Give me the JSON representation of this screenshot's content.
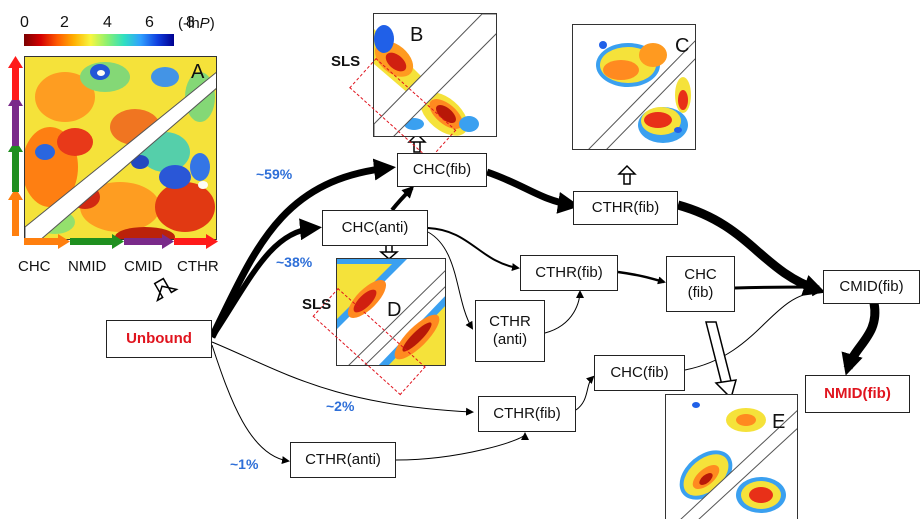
{
  "colorbar": {
    "ticks": [
      "0",
      "2",
      "4",
      "6",
      "8"
    ],
    "unit_prefix": "(-ln",
    "unit_var": "P",
    "unit_suffix": ")"
  },
  "panels": {
    "A": "A",
    "B": "B",
    "C": "C",
    "D": "D",
    "E": "E"
  },
  "sls": "SLS",
  "axis_labels": [
    "CHC",
    "NMID",
    "CMID",
    "CTHR"
  ],
  "nodes": {
    "unbound": "Unbound",
    "chc_fib_top": "CHC(fib)",
    "cthr_fib_top": "CTHR(fib)",
    "chc_anti": "CHC(anti)",
    "cthr_fib_mid": "CTHR(fib)",
    "chc_fib_right": "CHC\n(fib)",
    "cthr_anti_mid": "CTHR\n(anti)",
    "cmid_fib": "CMID(fib)",
    "nmid_fib": "NMID(fib)",
    "chc_fib_low": "CHC(fib)",
    "cthr_fib_low": "CTHR(fib)",
    "cthr_anti_low": "CTHR(anti)"
  },
  "percentages": {
    "p59": "~59%",
    "p38": "~38%",
    "p2": "~2%",
    "p1": "~1%"
  },
  "colors": {
    "label_red": "#e0141e",
    "percent_blue": "#2e6fd8",
    "axis_orange": "#ff7f0e",
    "axis_green": "#1f8f1f",
    "axis_purple": "#7a2a8a",
    "axis_red": "#ff1a1a"
  }
}
